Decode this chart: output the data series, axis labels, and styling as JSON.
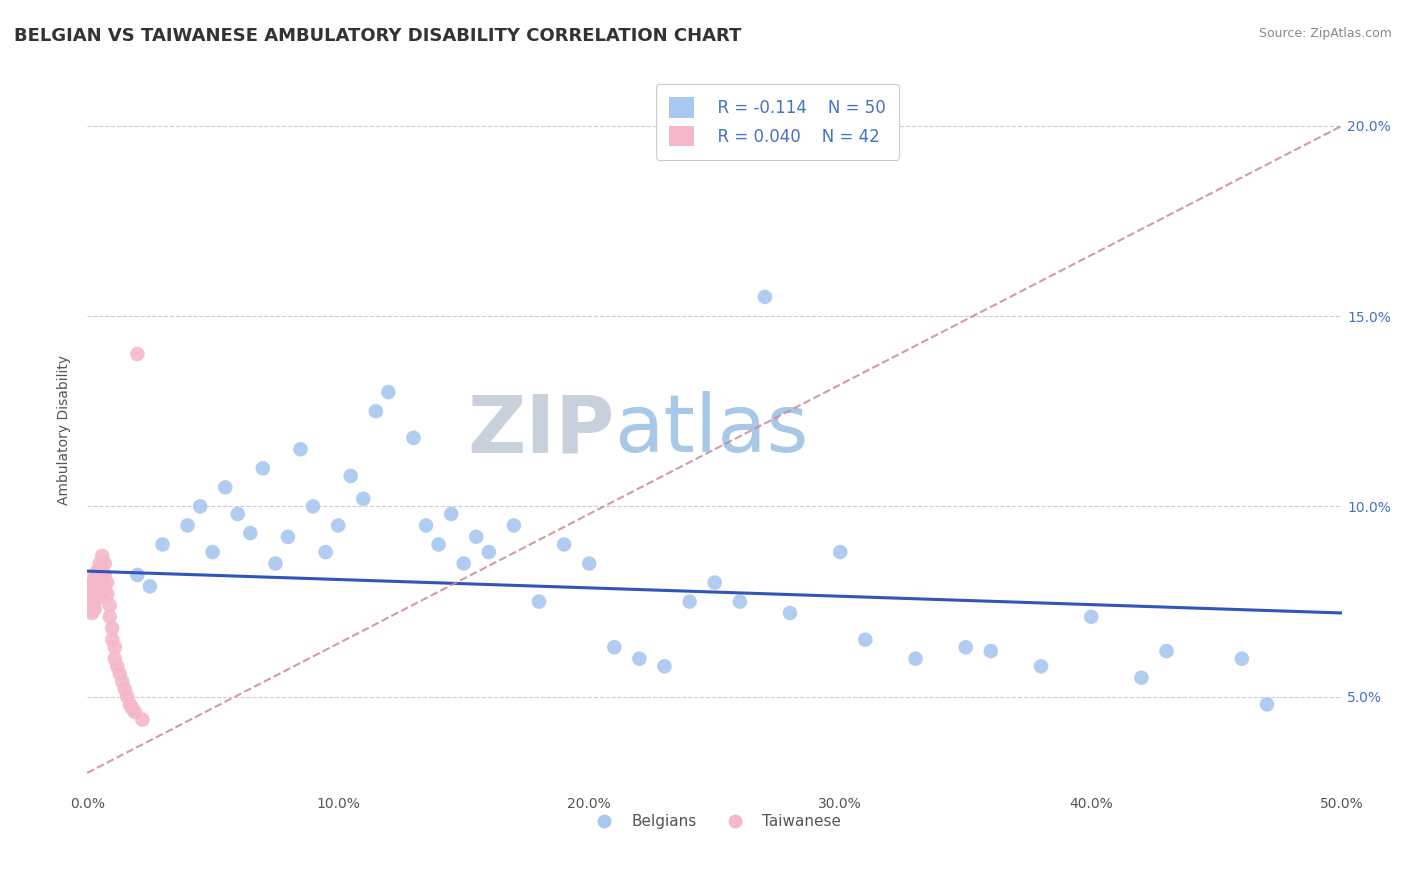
{
  "title": "BELGIAN VS TAIWANESE AMBULATORY DISABILITY CORRELATION CHART",
  "source": "Source: ZipAtlas.com",
  "ylabel": "Ambulatory Disability",
  "xlim": [
    0.0,
    0.5
  ],
  "ylim": [
    0.025,
    0.215
  ],
  "xticks": [
    0.0,
    0.1,
    0.2,
    0.3,
    0.4,
    0.5
  ],
  "xtick_labels": [
    "0.0%",
    "10.0%",
    "20.0%",
    "30.0%",
    "40.0%",
    "50.0%"
  ],
  "yticks": [
    0.05,
    0.1,
    0.15,
    0.2
  ],
  "ytick_labels": [
    "5.0%",
    "10.0%",
    "15.0%",
    "20.0%"
  ],
  "legend_r_belgian": "R = -0.114",
  "legend_n_belgian": "N = 50",
  "legend_r_taiwanese": "R = 0.040",
  "legend_n_taiwanese": "N = 42",
  "belgian_color": "#a8c8f0",
  "taiwanese_color": "#f4b8c8",
  "blue_line_color": "#3355bb",
  "pink_line_color": "#cc8899",
  "watermark_zip": "ZIP",
  "watermark_atlas": "atlas",
  "watermark_color_zip": "#c8d0dc",
  "watermark_color_atlas": "#a8c8e8",
  "background_color": "#ffffff",
  "belgians_x": [
    0.02,
    0.025,
    0.03,
    0.04,
    0.045,
    0.05,
    0.055,
    0.06,
    0.065,
    0.07,
    0.075,
    0.08,
    0.085,
    0.09,
    0.095,
    0.1,
    0.105,
    0.11,
    0.115,
    0.12,
    0.13,
    0.135,
    0.14,
    0.145,
    0.15,
    0.155,
    0.16,
    0.17,
    0.18,
    0.19,
    0.2,
    0.21,
    0.22,
    0.23,
    0.24,
    0.25,
    0.26,
    0.27,
    0.28,
    0.3,
    0.31,
    0.33,
    0.35,
    0.36,
    0.38,
    0.4,
    0.42,
    0.43,
    0.46,
    0.47
  ],
  "belgians_y": [
    0.082,
    0.079,
    0.09,
    0.095,
    0.1,
    0.088,
    0.105,
    0.098,
    0.093,
    0.11,
    0.085,
    0.092,
    0.115,
    0.1,
    0.088,
    0.095,
    0.108,
    0.102,
    0.125,
    0.13,
    0.118,
    0.095,
    0.09,
    0.098,
    0.085,
    0.092,
    0.088,
    0.095,
    0.075,
    0.09,
    0.085,
    0.063,
    0.06,
    0.058,
    0.075,
    0.08,
    0.075,
    0.155,
    0.072,
    0.088,
    0.065,
    0.06,
    0.063,
    0.062,
    0.058,
    0.071,
    0.055,
    0.062,
    0.06,
    0.048
  ],
  "taiwanese_x": [
    0.001,
    0.001,
    0.001,
    0.002,
    0.002,
    0.002,
    0.002,
    0.003,
    0.003,
    0.003,
    0.003,
    0.004,
    0.004,
    0.004,
    0.005,
    0.005,
    0.005,
    0.005,
    0.006,
    0.006,
    0.006,
    0.007,
    0.007,
    0.007,
    0.008,
    0.008,
    0.009,
    0.009,
    0.01,
    0.01,
    0.011,
    0.011,
    0.012,
    0.013,
    0.014,
    0.015,
    0.016,
    0.017,
    0.018,
    0.019,
    0.02,
    0.022
  ],
  "taiwanese_y": [
    0.077,
    0.079,
    0.075,
    0.08,
    0.077,
    0.074,
    0.072,
    0.082,
    0.079,
    0.076,
    0.073,
    0.083,
    0.08,
    0.077,
    0.085,
    0.082,
    0.079,
    0.076,
    0.087,
    0.083,
    0.08,
    0.085,
    0.082,
    0.078,
    0.08,
    0.077,
    0.074,
    0.071,
    0.068,
    0.065,
    0.063,
    0.06,
    0.058,
    0.056,
    0.054,
    0.052,
    0.05,
    0.048,
    0.047,
    0.046,
    0.14,
    0.044
  ],
  "title_fontsize": 13,
  "axis_label_fontsize": 10,
  "tick_fontsize": 10,
  "legend_fontsize": 12
}
